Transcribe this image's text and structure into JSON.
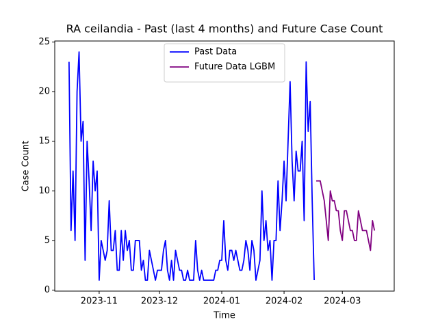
{
  "chart_data": {
    "type": "line",
    "title": "RA ceilandia - Past (last 4 months) and Future Case Count",
    "xlabel": "Time",
    "ylabel": "Case Count",
    "xlim": [
      -22.1,
      146.8
    ],
    "xticks": [
      {
        "value": 0,
        "label": "2023-11"
      },
      {
        "value": 30,
        "label": "2023-12"
      },
      {
        "value": 61,
        "label": "2024-01"
      },
      {
        "value": 92,
        "label": "2024-02"
      },
      {
        "value": 121,
        "label": "2024-03"
      }
    ],
    "ylim": [
      -0.1,
      25.1
    ],
    "yticks": [
      0,
      5,
      10,
      15,
      20,
      25
    ],
    "legend": "upper center",
    "series": [
      {
        "name": "Past Data",
        "color": "#0000ff",
        "x": [
          -15,
          -14,
          -13,
          -12,
          -11,
          -10,
          -9,
          -8,
          -7,
          -6,
          -5,
          -4,
          -3,
          -2,
          -1,
          0,
          1,
          2,
          3,
          4,
          5,
          6,
          7,
          8,
          9,
          10,
          11,
          12,
          13,
          14,
          15,
          16,
          17,
          18,
          19,
          20,
          21,
          22,
          23,
          24,
          25,
          26,
          27,
          28,
          29,
          30,
          31,
          32,
          33,
          34,
          35,
          36,
          37,
          38,
          39,
          40,
          41,
          42,
          43,
          44,
          45,
          46,
          47,
          48,
          49,
          50,
          51,
          52,
          53,
          54,
          55,
          56,
          57,
          58,
          59,
          60,
          61,
          62,
          63,
          64,
          65,
          66,
          67,
          68,
          69,
          70,
          71,
          72,
          73,
          74,
          75,
          76,
          77,
          78,
          79,
          80,
          81,
          82,
          83,
          84,
          85,
          86,
          87,
          88,
          89,
          90,
          91,
          92,
          93,
          94,
          95,
          96,
          97,
          98,
          99,
          100,
          101,
          102,
          103,
          104,
          105,
          106,
          107
        ],
        "values": [
          23,
          6,
          12,
          5,
          20,
          24,
          15,
          17,
          3,
          15,
          11,
          6,
          13,
          10,
          12,
          1,
          5,
          4,
          3,
          4,
          9,
          4,
          4,
          6,
          2,
          2,
          6,
          3,
          6,
          4,
          5,
          2,
          2,
          5,
          5,
          5,
          2,
          3,
          1,
          1,
          4,
          3,
          2,
          1,
          2,
          2,
          2,
          4,
          5,
          2,
          1,
          3,
          1,
          4,
          3,
          2,
          2,
          1,
          1,
          2,
          1,
          1,
          1,
          5,
          2,
          1,
          2,
          1,
          1,
          1,
          1,
          1,
          1,
          2,
          2,
          3,
          3,
          7,
          3,
          2,
          4,
          4,
          3,
          4,
          3,
          2,
          2,
          3,
          5,
          4,
          2,
          5,
          4,
          1,
          2,
          3,
          10,
          5,
          7,
          4,
          5,
          1,
          5,
          5,
          11,
          6,
          9,
          13,
          9,
          15,
          21,
          13,
          9,
          14,
          12,
          12,
          15,
          7,
          23,
          16,
          19,
          9,
          1
        ]
      },
      {
        "name": "Future Data LGBM",
        "color": "#800080",
        "x": [
          108,
          109,
          110,
          111,
          112,
          113,
          114,
          115,
          116,
          117,
          118,
          119,
          120,
          121,
          122,
          123,
          124,
          125,
          126,
          127,
          128,
          129,
          130,
          131,
          132,
          133,
          134,
          135,
          136,
          137
        ],
        "values": [
          11,
          11,
          11,
          10,
          9,
          7,
          5,
          10,
          9,
          9,
          8,
          8,
          6,
          5,
          8,
          8,
          7,
          6,
          6,
          5,
          5,
          8,
          7,
          6,
          6,
          6,
          5,
          4,
          7,
          6
        ]
      }
    ]
  }
}
